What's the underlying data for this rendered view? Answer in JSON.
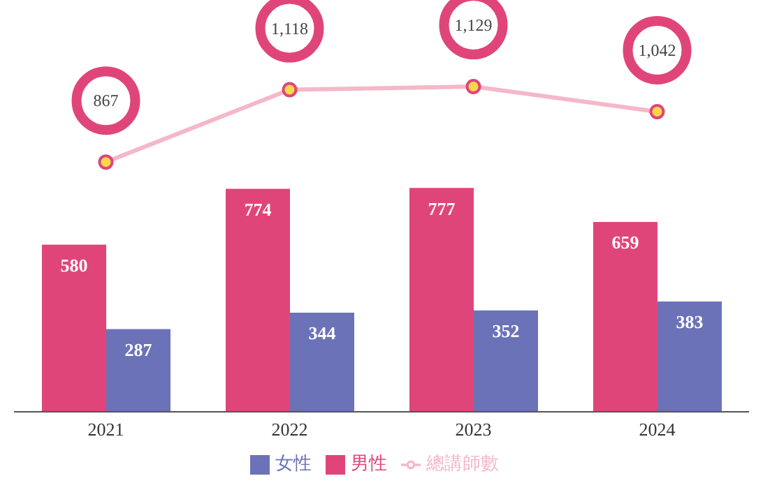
{
  "chart_data": {
    "type": "bar",
    "categories": [
      "2021",
      "2022",
      "2023",
      "2024"
    ],
    "series": [
      {
        "name": "男性",
        "color": "#e0457a",
        "values": [
          580,
          774,
          777,
          659
        ]
      },
      {
        "name": "女性",
        "color": "#6b72b8",
        "values": [
          287,
          344,
          352,
          383
        ]
      },
      {
        "name": "總講師數",
        "type": "line",
        "color": "#f4b8c8",
        "values": [
          867,
          1118,
          1129,
          1042
        ],
        "value_labels": [
          "867",
          "1,118",
          "1,129",
          "1,042"
        ]
      }
    ],
    "data_labels": true,
    "legend": "bottom",
    "grid": false,
    "marker": "circle"
  }
}
